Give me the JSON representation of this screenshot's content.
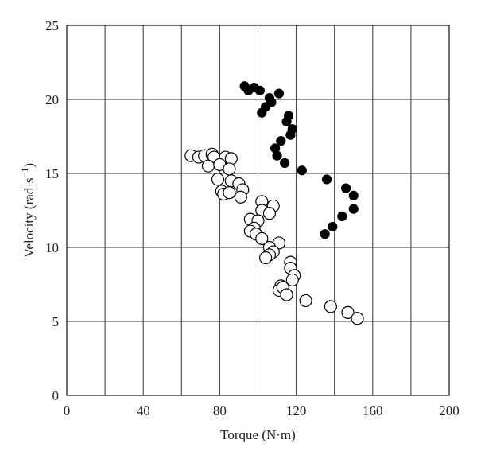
{
  "chart_data": {
    "type": "scatter",
    "title": "",
    "xlabel": "Torque (N·m)",
    "ylabel": "Velocity (rad·s",
    "ylabel_sup": "−1",
    "ylabel_tail": ")",
    "xlim": [
      0,
      200
    ],
    "ylim": [
      0,
      25
    ],
    "x_ticks": [
      0,
      40,
      80,
      120,
      160,
      200
    ],
    "y_ticks": [
      0,
      5,
      10,
      15,
      20,
      25
    ],
    "x_tick_labels": [
      "0",
      "40",
      "80",
      "120",
      "160",
      "200"
    ],
    "y_tick_labels": [
      "0",
      "5",
      "10",
      "15",
      "20",
      "25"
    ],
    "x_grid": [
      0,
      20,
      40,
      60,
      80,
      100,
      120,
      140,
      160,
      180,
      200
    ],
    "y_grid": [
      0,
      5,
      10,
      15,
      20,
      25
    ],
    "grid": true,
    "series": [
      {
        "marker": "filled",
        "color": "#000000",
        "points": [
          [
            93,
            20.9
          ],
          [
            95,
            20.6
          ],
          [
            98,
            20.8
          ],
          [
            101,
            20.6
          ],
          [
            111,
            20.4
          ],
          [
            106,
            20.1
          ],
          [
            104,
            19.5
          ],
          [
            107,
            19.8
          ],
          [
            102,
            19.1
          ],
          [
            116,
            18.9
          ],
          [
            115,
            18.5
          ],
          [
            118,
            18.0
          ],
          [
            117,
            17.6
          ],
          [
            112,
            17.2
          ],
          [
            109,
            16.7
          ],
          [
            110,
            16.2
          ],
          [
            114,
            15.7
          ],
          [
            123,
            15.2
          ],
          [
            136,
            14.6
          ],
          [
            146,
            14.0
          ],
          [
            150,
            13.5
          ],
          [
            150,
            12.6
          ],
          [
            144,
            12.1
          ],
          [
            139,
            11.4
          ],
          [
            135,
            10.9
          ]
        ]
      },
      {
        "marker": "open",
        "color": "#000000",
        "points": [
          [
            65,
            16.2
          ],
          [
            69,
            16.1
          ],
          [
            72,
            16.2
          ],
          [
            76,
            16.3
          ],
          [
            77,
            16.1
          ],
          [
            83,
            16.1
          ],
          [
            86,
            16.0
          ],
          [
            74,
            15.5
          ],
          [
            80,
            15.6
          ],
          [
            85,
            15.3
          ],
          [
            79,
            14.6
          ],
          [
            86,
            14.5
          ],
          [
            90,
            14.3
          ],
          [
            92,
            13.9
          ],
          [
            81,
            13.8
          ],
          [
            82,
            13.6
          ],
          [
            85,
            13.7
          ],
          [
            91,
            13.4
          ],
          [
            102,
            13.1
          ],
          [
            108,
            12.8
          ],
          [
            102,
            12.5
          ],
          [
            106,
            12.3
          ],
          [
            96,
            11.9
          ],
          [
            100,
            11.8
          ],
          [
            98,
            11.3
          ],
          [
            96,
            11.1
          ],
          [
            99,
            10.9
          ],
          [
            102,
            10.6
          ],
          [
            111,
            10.3
          ],
          [
            106,
            10.0
          ],
          [
            108,
            9.7
          ],
          [
            106,
            9.5
          ],
          [
            104,
            9.3
          ],
          [
            117,
            9.0
          ],
          [
            117,
            8.6
          ],
          [
            119,
            8.1
          ],
          [
            118,
            7.8
          ],
          [
            112,
            7.4
          ],
          [
            111,
            7.1
          ],
          [
            113,
            7.3
          ],
          [
            115,
            6.8
          ],
          [
            125,
            6.4
          ],
          [
            138,
            6.0
          ],
          [
            147,
            5.6
          ],
          [
            152,
            5.2
          ]
        ]
      }
    ]
  }
}
